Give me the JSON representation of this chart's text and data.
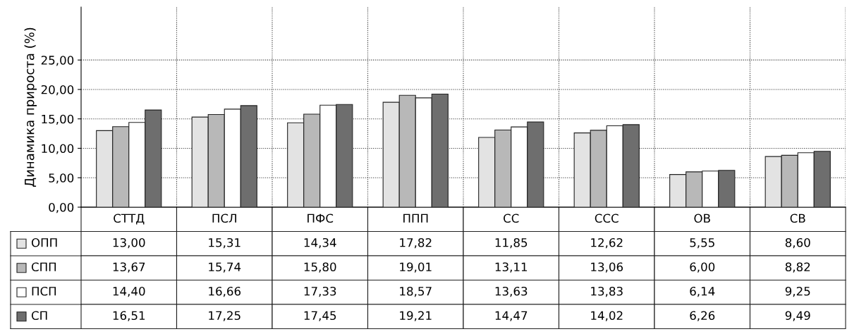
{
  "chart_data": {
    "type": "bar",
    "ylabel": "Динамика прироста (%)",
    "categories": [
      "СТТД",
      "ПСЛ",
      "ПФС",
      "ППП",
      "СС",
      "ССС",
      "ОВ",
      "СВ"
    ],
    "series": [
      {
        "name": "ОПП",
        "color": "#e3e3e3",
        "values": [
          13.0,
          15.31,
          14.34,
          17.82,
          11.85,
          12.62,
          5.55,
          8.6
        ],
        "value_labels": [
          "13,00",
          "15,31",
          "14,34",
          "17,82",
          "11,85",
          "12,62",
          "5,55",
          "8,60"
        ]
      },
      {
        "name": "СПП",
        "color": "#b8b8b8",
        "values": [
          13.67,
          15.74,
          15.8,
          19.01,
          13.11,
          13.06,
          6.0,
          8.82
        ],
        "value_labels": [
          "13,67",
          "15,74",
          "15,80",
          "19,01",
          "13,11",
          "13,06",
          "6,00",
          "8,82"
        ]
      },
      {
        "name": "ПСП",
        "color": "#ffffff",
        "values": [
          14.4,
          16.66,
          17.33,
          18.57,
          13.63,
          13.83,
          6.14,
          9.25
        ],
        "value_labels": [
          "14,40",
          "16,66",
          "17,33",
          "18,57",
          "13,63",
          "13,83",
          "6,14",
          "9,25"
        ]
      },
      {
        "name": "СП",
        "color": "#6e6e6e",
        "values": [
          16.51,
          17.25,
          17.45,
          19.21,
          14.47,
          14.02,
          6.26,
          9.49
        ],
        "value_labels": [
          "16,51",
          "17,25",
          "17,45",
          "19,21",
          "14,47",
          "14,02",
          "6,26",
          "9,49"
        ]
      }
    ],
    "ylim": [
      0,
      34
    ],
    "yticks": [
      {
        "value": 0,
        "label": "0,00"
      },
      {
        "value": 5,
        "label": "5,00"
      },
      {
        "value": 10,
        "label": "10,00"
      },
      {
        "value": 15,
        "label": "15,00"
      },
      {
        "value": 20,
        "label": "20,00"
      },
      {
        "value": 25,
        "label": "25,00"
      }
    ],
    "grid": true,
    "legend": "bottom"
  }
}
